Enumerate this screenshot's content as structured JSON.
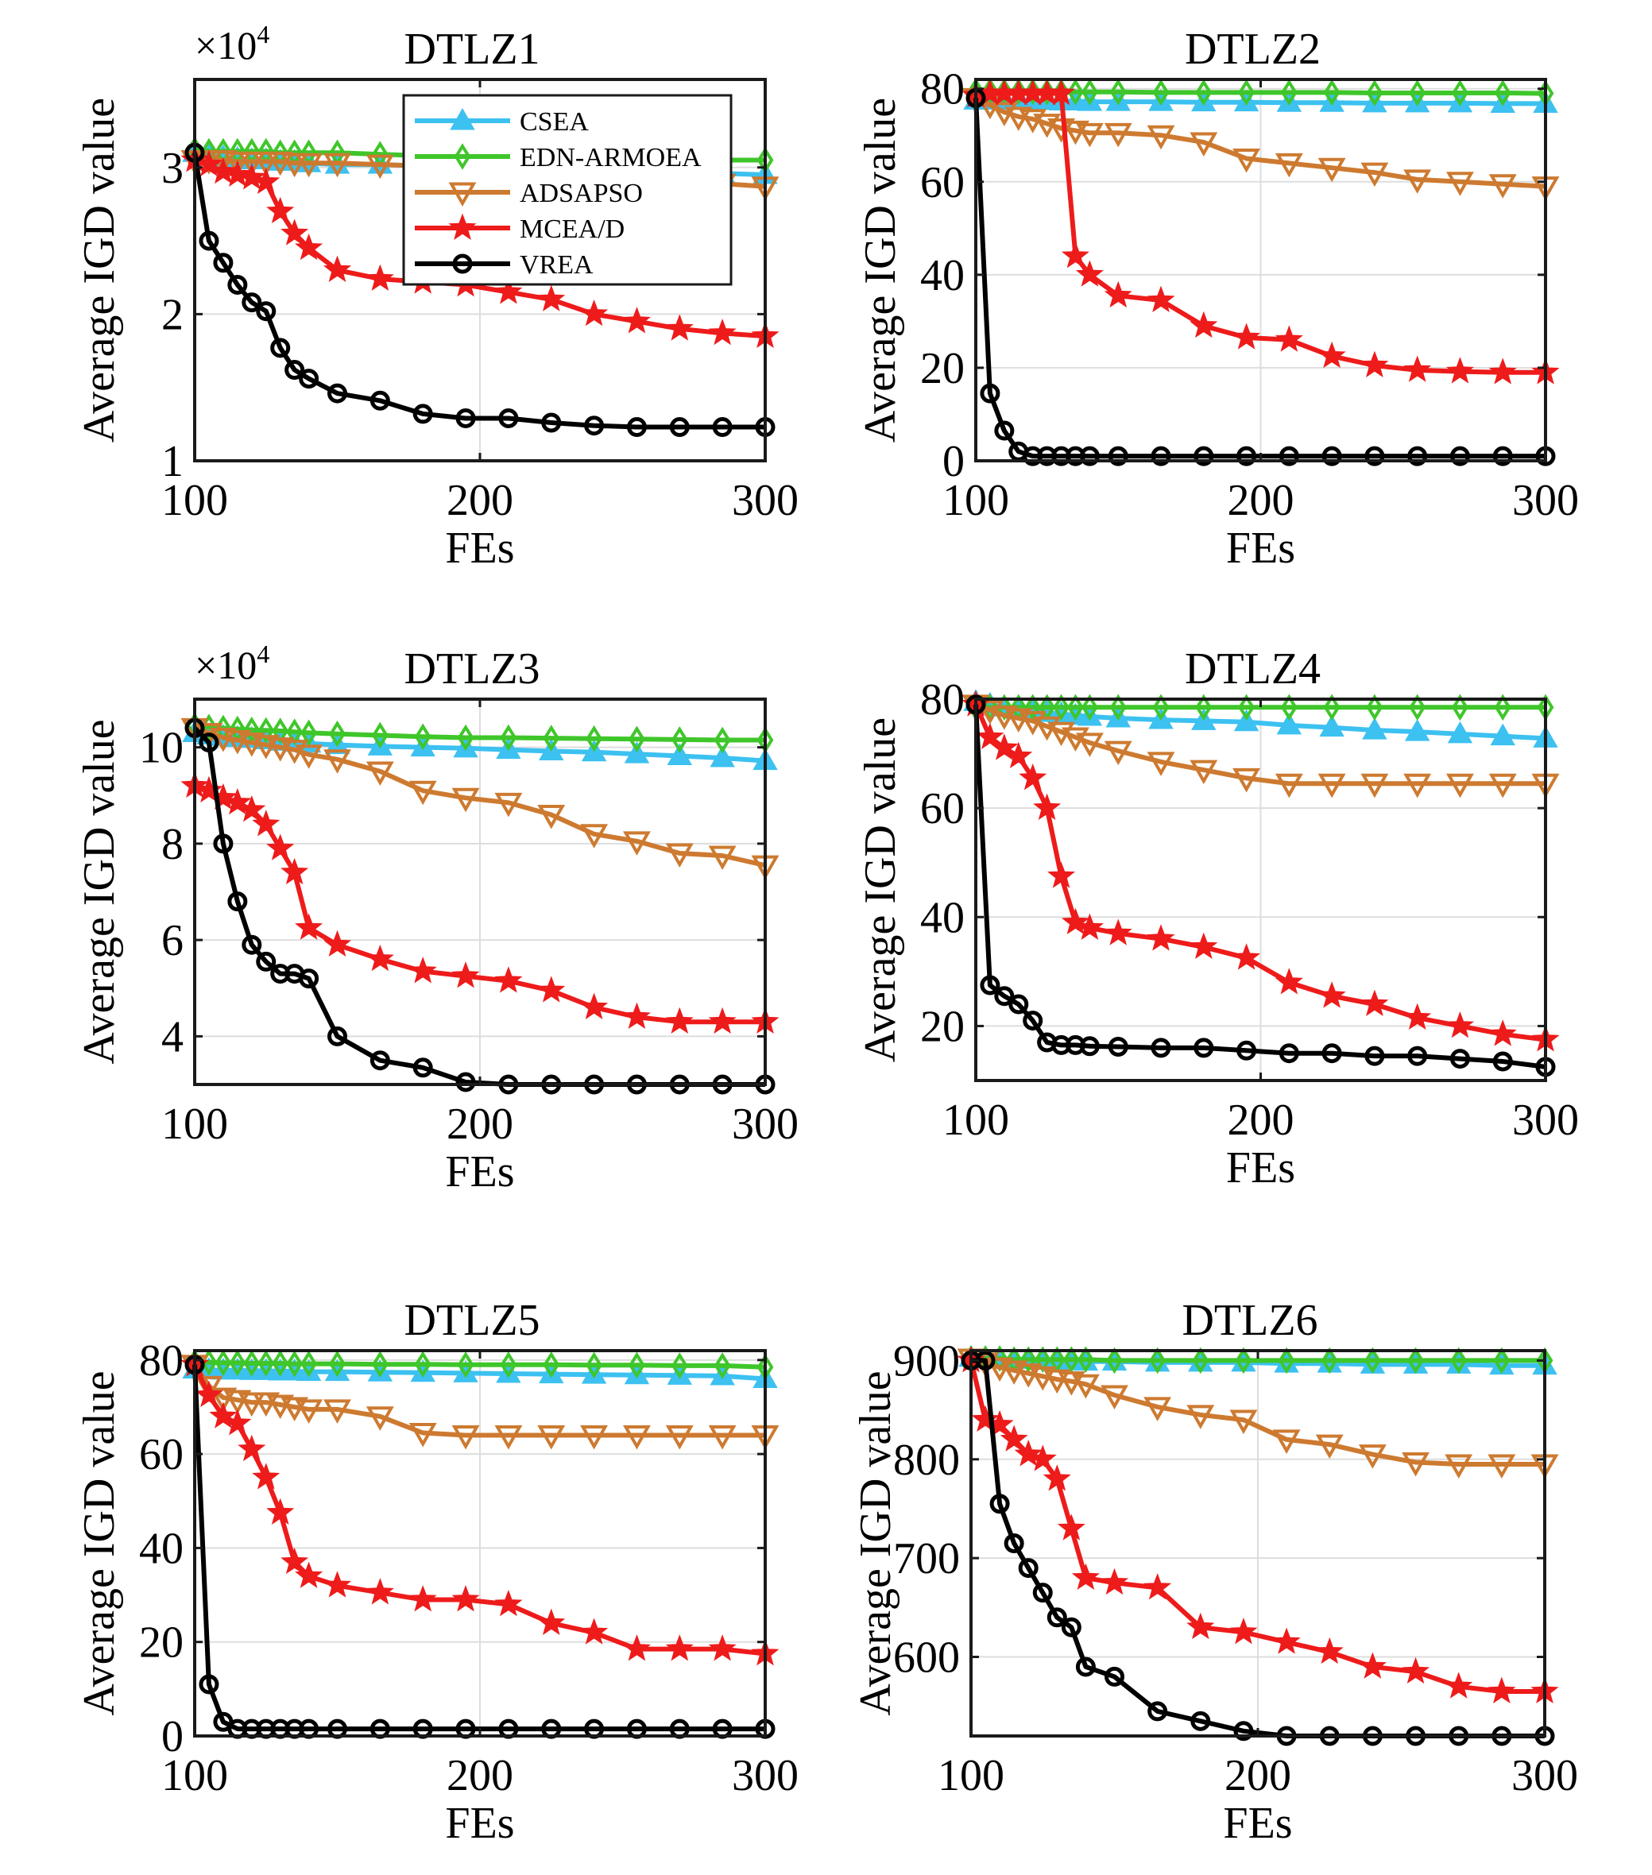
{
  "colors": {
    "CSEA": "#3cc1f0",
    "EDN-ARMOEA": "#3fc62a",
    "ADSAPSO": "#cd7a30",
    "MCEA/D": "#ee1b1b",
    "VREA": "#000000",
    "grid": "#dddddd",
    "axis": "#1a1a1a"
  },
  "legend": {
    "position": "inside top-right of first panel",
    "entries": [
      "CSEA",
      "EDN-ARMOEA",
      "ADSAPSO",
      "MCEA/D",
      "VREA"
    ]
  },
  "chart_data": [
    {
      "type": "line",
      "title": "DTLZ1",
      "xlabel": "FEs",
      "ylabel": "Average IGD value",
      "multiplier": "×10",
      "multiplier_exp": "4",
      "xlim": [
        100,
        300
      ],
      "ylim": [
        1,
        3.6
      ],
      "xticks": [
        "100",
        "200",
        "300"
      ],
      "yticks": [
        "1",
        "2",
        "3"
      ],
      "grid": true,
      "x": [
        100,
        105,
        110,
        115,
        120,
        125,
        130,
        135,
        140,
        150,
        165,
        180,
        195,
        210,
        225,
        240,
        255,
        270,
        285,
        300
      ],
      "series": [
        {
          "name": "CSEA",
          "values": [
            3.1,
            3.08,
            3.07,
            3.06,
            3.05,
            3.05,
            3.04,
            3.04,
            3.03,
            3.02,
            3.02,
            3.01,
            3.0,
            3.0,
            3.0,
            2.99,
            2.98,
            2.97,
            2.96,
            2.95
          ]
        },
        {
          "name": "EDN-ARMOEA",
          "values": [
            3.12,
            3.11,
            3.11,
            3.11,
            3.11,
            3.11,
            3.1,
            3.1,
            3.1,
            3.1,
            3.09,
            3.08,
            3.07,
            3.07,
            3.07,
            3.06,
            3.06,
            3.05,
            3.05,
            3.05
          ]
        },
        {
          "name": "ADSAPSO",
          "values": [
            3.05,
            3.05,
            3.05,
            3.04,
            3.04,
            3.04,
            3.04,
            3.03,
            3.03,
            3.03,
            3.02,
            3.01,
            3.0,
            2.99,
            2.97,
            2.95,
            2.93,
            2.91,
            2.89,
            2.87
          ]
        },
        {
          "name": "MCEA/D",
          "values": [
            3.05,
            3.02,
            2.97,
            2.95,
            2.93,
            2.9,
            2.7,
            2.55,
            2.45,
            2.3,
            2.24,
            2.22,
            2.2,
            2.15,
            2.1,
            2.0,
            1.95,
            1.9,
            1.87,
            1.85
          ]
        },
        {
          "name": "VREA",
          "values": [
            3.1,
            2.5,
            2.35,
            2.2,
            2.08,
            2.02,
            1.77,
            1.62,
            1.56,
            1.46,
            1.41,
            1.32,
            1.29,
            1.29,
            1.26,
            1.24,
            1.23,
            1.23,
            1.23,
            1.23
          ]
        }
      ]
    },
    {
      "type": "line",
      "title": "DTLZ2",
      "xlabel": "FEs",
      "ylabel": "Average IGD value",
      "multiplier": "",
      "multiplier_exp": "",
      "xlim": [
        100,
        300
      ],
      "ylim": [
        0,
        82
      ],
      "xticks": [
        "100",
        "200",
        "300"
      ],
      "yticks": [
        "0",
        "20",
        "40",
        "60",
        "80"
      ],
      "grid": true,
      "x": [
        100,
        105,
        110,
        115,
        120,
        125,
        130,
        135,
        140,
        150,
        165,
        180,
        195,
        210,
        225,
        240,
        255,
        270,
        285,
        300
      ],
      "series": [
        {
          "name": "CSEA",
          "values": [
            77.5,
            77.5,
            77.5,
            77.5,
            77.4,
            77.4,
            77.3,
            77.3,
            77.2,
            77.2,
            77.2,
            77.1,
            77.1,
            77.0,
            77.0,
            76.9,
            76.9,
            76.9,
            76.8,
            76.8
          ]
        },
        {
          "name": "EDN-ARMOEA",
          "values": [
            79.5,
            79.5,
            79.4,
            79.4,
            79.4,
            79.3,
            79.3,
            79.3,
            79.3,
            79.3,
            79.2,
            79.2,
            79.2,
            79.2,
            79.2,
            79.1,
            79.1,
            79.1,
            79.1,
            79.0
          ]
        },
        {
          "name": "ADSAPSO",
          "values": [
            78.0,
            76.5,
            75.0,
            74.0,
            73.5,
            72.5,
            71.5,
            71.0,
            70.5,
            70.5,
            70.0,
            68.5,
            65.0,
            64.0,
            63.0,
            62.0,
            60.5,
            60.0,
            59.5,
            59.0
          ]
        },
        {
          "name": "MCEA/D",
          "values": [
            78.5,
            79.0,
            79.0,
            79.0,
            79.0,
            79.0,
            79.0,
            44.0,
            40.0,
            35.5,
            34.5,
            29.0,
            26.5,
            26.0,
            22.5,
            20.5,
            19.5,
            19.2,
            19.0,
            19.0
          ]
        },
        {
          "name": "VREA",
          "values": [
            78.0,
            14.5,
            6.5,
            2.0,
            1.0,
            1.0,
            1.0,
            1.0,
            1.0,
            1.0,
            1.0,
            1.0,
            1.0,
            1.0,
            1.0,
            1.0,
            1.0,
            1.0,
            1.0,
            1.0
          ]
        }
      ]
    },
    {
      "type": "line",
      "title": "DTLZ3",
      "xlabel": "FEs",
      "ylabel": "Average IGD value",
      "multiplier": "×10",
      "multiplier_exp": "4",
      "xlim": [
        100,
        300
      ],
      "ylim": [
        3,
        11
      ],
      "xticks": [
        "100",
        "200",
        "300"
      ],
      "yticks": [
        "4",
        "6",
        "8",
        "10"
      ],
      "grid": true,
      "x": [
        100,
        105,
        110,
        115,
        120,
        125,
        130,
        135,
        140,
        150,
        165,
        180,
        195,
        210,
        225,
        240,
        255,
        270,
        285,
        300
      ],
      "series": [
        {
          "name": "CSEA",
          "values": [
            10.3,
            10.25,
            10.22,
            10.2,
            10.18,
            10.15,
            10.12,
            10.1,
            10.08,
            10.05,
            10.02,
            10.0,
            9.98,
            9.95,
            9.92,
            9.9,
            9.86,
            9.82,
            9.78,
            9.72
          ]
        },
        {
          "name": "EDN-ARMOEA",
          "values": [
            10.45,
            10.42,
            10.4,
            10.38,
            10.36,
            10.35,
            10.34,
            10.32,
            10.3,
            10.28,
            10.25,
            10.22,
            10.2,
            10.2,
            10.19,
            10.18,
            10.17,
            10.16,
            10.15,
            10.15
          ]
        },
        {
          "name": "ADSAPSO",
          "values": [
            10.4,
            10.3,
            10.2,
            10.15,
            10.1,
            10.05,
            10.0,
            9.95,
            9.85,
            9.75,
            9.5,
            9.1,
            8.95,
            8.85,
            8.6,
            8.2,
            8.05,
            7.8,
            7.75,
            7.55
          ]
        },
        {
          "name": "MCEA/D",
          "values": [
            9.2,
            9.1,
            8.95,
            8.85,
            8.7,
            8.4,
            7.9,
            7.4,
            6.25,
            5.9,
            5.6,
            5.35,
            5.25,
            5.15,
            4.95,
            4.6,
            4.4,
            4.3,
            4.3,
            4.3
          ]
        },
        {
          "name": "VREA",
          "values": [
            10.4,
            10.1,
            8.0,
            6.8,
            5.9,
            5.55,
            5.3,
            5.3,
            5.2,
            4.0,
            3.5,
            3.35,
            3.05,
            3.0,
            3.0,
            3.0,
            3.0,
            3.0,
            3.0,
            3.0
          ]
        }
      ]
    },
    {
      "type": "line",
      "title": "DTLZ4",
      "xlabel": "FEs",
      "ylabel": "Average IGD value",
      "multiplier": "",
      "multiplier_exp": "",
      "xlim": [
        100,
        300
      ],
      "ylim": [
        10,
        80
      ],
      "xticks": [
        "100",
        "200",
        "300"
      ],
      "yticks": [
        "20",
        "40",
        "60",
        "80"
      ],
      "grid": true,
      "x": [
        100,
        105,
        110,
        115,
        120,
        125,
        130,
        135,
        140,
        150,
        165,
        180,
        195,
        210,
        225,
        240,
        255,
        270,
        285,
        300
      ],
      "series": [
        {
          "name": "CSEA",
          "values": [
            79.5,
            79.0,
            78.5,
            78.0,
            77.8,
            77.5,
            77.3,
            77.0,
            76.8,
            76.5,
            76.2,
            76.0,
            75.8,
            75.2,
            74.8,
            74.3,
            74.0,
            73.6,
            73.2,
            72.8
          ]
        },
        {
          "name": "EDN-ARMOEA",
          "values": [
            78.5,
            78.5,
            78.5,
            78.5,
            78.5,
            78.5,
            78.5,
            78.5,
            78.5,
            78.5,
            78.5,
            78.5,
            78.5,
            78.5,
            78.5,
            78.5,
            78.5,
            78.5,
            78.5,
            78.5
          ]
        },
        {
          "name": "ADSAPSO",
          "values": [
            79.0,
            78.0,
            77.0,
            76.5,
            76.0,
            75.0,
            74.0,
            73.0,
            72.0,
            70.5,
            68.5,
            67.0,
            65.5,
            64.5,
            64.5,
            64.5,
            64.5,
            64.5,
            64.5,
            64.5
          ]
        },
        {
          "name": "MCEA/D",
          "values": [
            79.0,
            73.0,
            71.0,
            69.5,
            65.5,
            60.0,
            47.5,
            39.0,
            38.0,
            37.0,
            36.0,
            34.5,
            32.5,
            28.0,
            25.5,
            24.0,
            21.5,
            20.0,
            18.5,
            17.5
          ]
        },
        {
          "name": "VREA",
          "values": [
            79.0,
            27.5,
            25.5,
            24.0,
            21.0,
            17.0,
            16.5,
            16.5,
            16.3,
            16.2,
            16.0,
            16.0,
            15.5,
            15.0,
            15.0,
            14.5,
            14.5,
            14.0,
            13.5,
            12.5
          ]
        }
      ]
    },
    {
      "type": "line",
      "title": "DTLZ5",
      "xlabel": "FEs",
      "ylabel": "Average IGD value",
      "multiplier": "",
      "multiplier_exp": "",
      "xlim": [
        100,
        300
      ],
      "ylim": [
        0,
        82
      ],
      "xticks": [
        "100",
        "200",
        "300"
      ],
      "yticks": [
        "0",
        "20",
        "40",
        "60",
        "80"
      ],
      "grid": true,
      "x": [
        100,
        105,
        110,
        115,
        120,
        125,
        130,
        135,
        140,
        150,
        165,
        180,
        195,
        210,
        225,
        240,
        255,
        270,
        285,
        300
      ],
      "series": [
        {
          "name": "CSEA",
          "values": [
            78.0,
            77.9,
            77.8,
            77.8,
            77.7,
            77.7,
            77.6,
            77.6,
            77.5,
            77.5,
            77.4,
            77.3,
            77.2,
            77.1,
            77.0,
            76.9,
            76.8,
            76.7,
            76.6,
            76.0
          ]
        },
        {
          "name": "EDN-ARMOEA",
          "values": [
            79.5,
            79.5,
            79.4,
            79.4,
            79.3,
            79.3,
            79.3,
            79.2,
            79.2,
            79.2,
            79.1,
            79.1,
            79.0,
            79.0,
            79.0,
            78.9,
            78.9,
            78.8,
            78.8,
            78.5
          ]
        },
        {
          "name": "ADSAPSO",
          "values": [
            79.0,
            74.5,
            72.0,
            71.5,
            71.0,
            71.0,
            70.5,
            70.0,
            69.5,
            69.5,
            68.0,
            64.5,
            64.0,
            64.0,
            64.0,
            64.0,
            64.0,
            64.0,
            64.0,
            64.0
          ]
        },
        {
          "name": "MCEA/D",
          "values": [
            79.0,
            72.5,
            68.0,
            66.5,
            61.0,
            55.0,
            47.5,
            37.0,
            34.0,
            32.0,
            30.5,
            29.0,
            29.0,
            28.0,
            24.0,
            22.0,
            18.5,
            18.5,
            18.5,
            17.5
          ]
        },
        {
          "name": "VREA",
          "values": [
            79.0,
            11.0,
            3.0,
            1.5,
            1.5,
            1.5,
            1.5,
            1.5,
            1.5,
            1.5,
            1.5,
            1.5,
            1.5,
            1.5,
            1.5,
            1.5,
            1.5,
            1.5,
            1.5,
            1.5
          ]
        }
      ]
    },
    {
      "type": "line",
      "title": "DTLZ6",
      "xlabel": "FEs",
      "ylabel": "Average IGD value",
      "multiplier": "",
      "multiplier_exp": "",
      "xlim": [
        100,
        300
      ],
      "ylim": [
        520,
        910
      ],
      "xticks": [
        "100",
        "200",
        "300"
      ],
      "yticks": [
        "600",
        "700",
        "800",
        "900"
      ],
      "grid": true,
      "x": [
        100,
        105,
        110,
        115,
        120,
        125,
        130,
        135,
        140,
        150,
        165,
        180,
        195,
        210,
        225,
        240,
        255,
        270,
        285,
        300
      ],
      "series": [
        {
          "name": "CSEA",
          "values": [
            903,
            902,
            902,
            901,
            901,
            900,
            900,
            900,
            899,
            899,
            898,
            898,
            898,
            897,
            897,
            896,
            896,
            896,
            895,
            895
          ]
        },
        {
          "name": "EDN-ARMOEA",
          "values": [
            902,
            902,
            902,
            901,
            901,
            901,
            901,
            901,
            901,
            900,
            900,
            900,
            900,
            900,
            900,
            900,
            900,
            900,
            900,
            900
          ]
        },
        {
          "name": "ADSAPSO",
          "values": [
            902,
            898,
            893,
            890,
            887,
            884,
            881,
            879,
            876,
            865,
            853,
            845,
            840,
            820,
            815,
            805,
            797,
            795,
            795,
            795
          ]
        },
        {
          "name": "MCEA/D",
          "values": [
            900,
            840,
            835,
            820,
            805,
            800,
            780,
            730,
            680,
            675,
            670,
            630,
            625,
            615,
            605,
            590,
            585,
            570,
            565,
            565
          ]
        },
        {
          "name": "VREA",
          "values": [
            900,
            900,
            755,
            715,
            690,
            665,
            640,
            630,
            590,
            580,
            545,
            535,
            525,
            520,
            520,
            520,
            520,
            520,
            520,
            520
          ]
        }
      ]
    }
  ]
}
